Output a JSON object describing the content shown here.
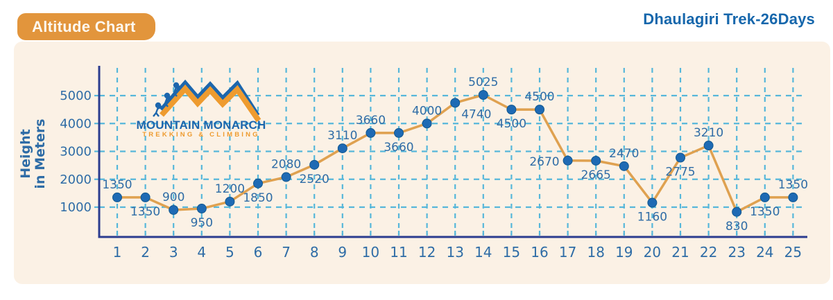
{
  "header": {
    "badge": "Altitude Chart",
    "title": "Dhaulagiri Trek-26Days"
  },
  "logo": {
    "name": "MOUNTAIN MONARCH",
    "tagline": "TREKKING & CLIMBING"
  },
  "colors": {
    "panel_cream": "#fbf1e5",
    "badge_orange": "#e2953c",
    "line_orange": "#dfa150",
    "point_blue": "#1e6ab4",
    "point_rim": "#11578f",
    "grid_blue": "#56b7da",
    "axis_navy": "#2b3c8f",
    "tick_text_blue": "#2e6ca6",
    "title_blue": "#1667ac",
    "logo_blue": "#1c66ad",
    "logo_orange": "#ee9b2f"
  },
  "chart_data": {
    "type": "line",
    "title": "Altitude Chart",
    "subtitle": "Dhaulagiri Trek-26Days",
    "x": [
      1,
      2,
      3,
      4,
      5,
      6,
      7,
      8,
      9,
      10,
      11,
      12,
      13,
      14,
      15,
      16,
      17,
      18,
      19,
      20,
      21,
      22,
      23,
      24,
      25
    ],
    "values": [
      1350,
      1350,
      900,
      950,
      1200,
      1850,
      2080,
      2520,
      3110,
      3660,
      3660,
      4000,
      4740,
      5025,
      4500,
      4500,
      2670,
      2665,
      2470,
      1160,
      2775,
      3210,
      830,
      1350,
      1350
    ],
    "label_positions": [
      "above",
      "below",
      "above",
      "below",
      "above",
      "below",
      "above",
      "below",
      "above",
      "above",
      "below",
      "above",
      "right",
      "above",
      "below",
      "above",
      "left",
      "below",
      "above",
      "below",
      "below",
      "above",
      "below",
      "below",
      "above"
    ],
    "xlabel": "",
    "ylabel": "Height in Meters",
    "ylabel_lines": [
      "Height",
      "in Meters"
    ],
    "yticks": [
      1000,
      2000,
      3000,
      4000,
      5000
    ],
    "ylim": [
      0,
      6100
    ],
    "grid": true,
    "grid_style": "dashed",
    "legend": "none"
  }
}
